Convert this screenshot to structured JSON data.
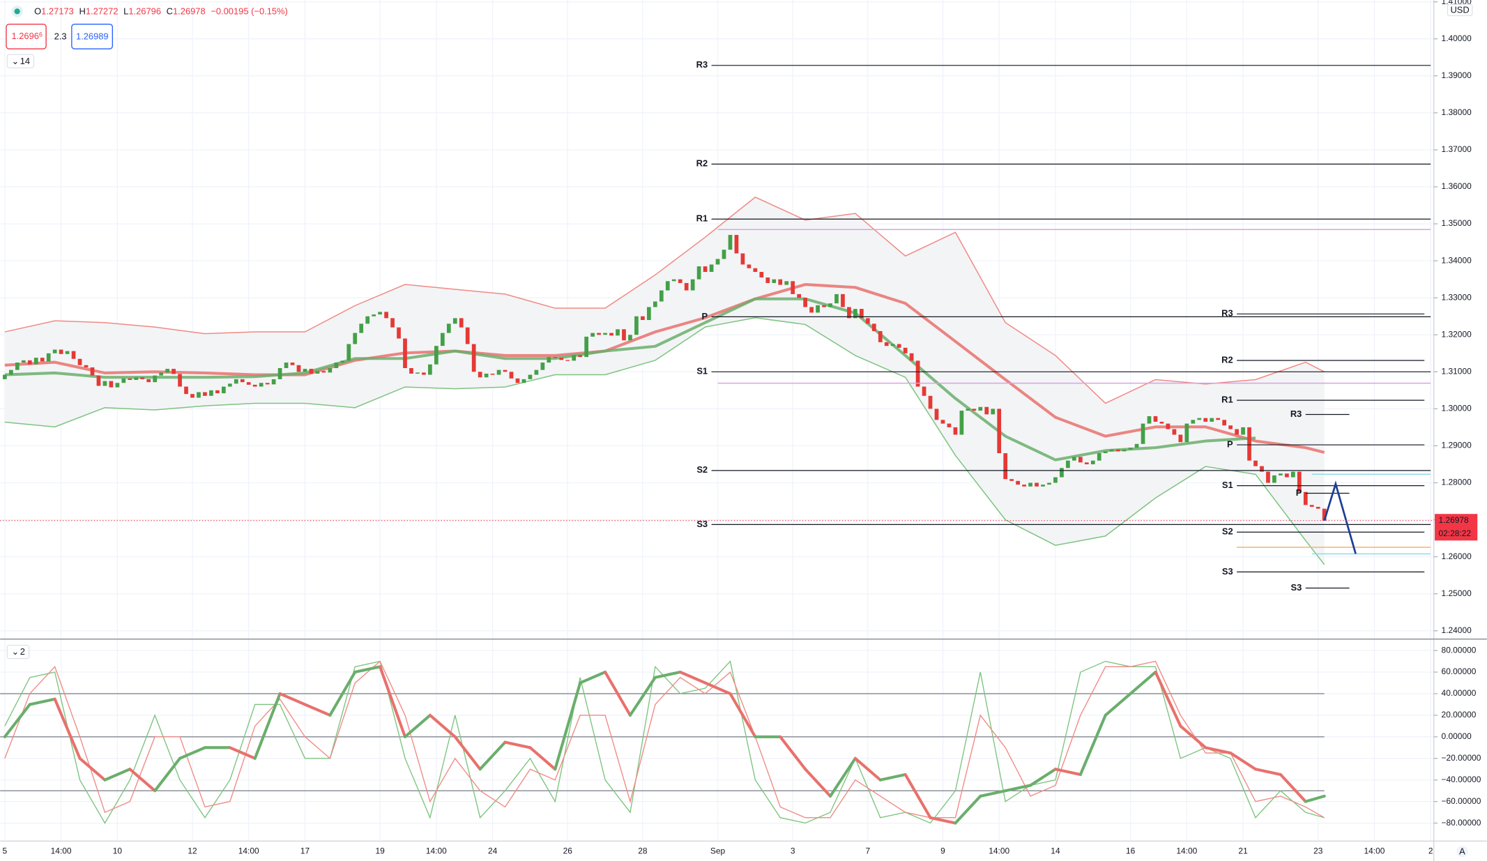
{
  "header": {
    "ohlc": [
      {
        "key": "O",
        "value": "1.27173"
      },
      {
        "key": "H",
        "value": "1.27272"
      },
      {
        "key": "L",
        "value": "1.26796"
      },
      {
        "key": "C",
        "value": "1.26978"
      }
    ],
    "change": "−0.00195 (−0.15%)",
    "bid": {
      "main": "1.2696",
      "pip": "6"
    },
    "spread": "2.3",
    "ask": "1.26989",
    "price_pane_toggle": "14",
    "osc_pane_toggle": "2",
    "currency": "USD",
    "countdown": "02:28:22",
    "auto_button": "A"
  },
  "chart_data": [
    {
      "type": "candlestick",
      "up_color": "#43a047",
      "down_color": "#e53935",
      "xlim": [
        -0.75,
        228.5
      ],
      "ylim": [
        1.238,
        1.4105
      ],
      "grid": true,
      "yticks": [
        {
          "value": 1.41,
          "label": "1.41000"
        },
        {
          "value": 1.4,
          "label": "1.40000"
        },
        {
          "value": 1.39,
          "label": "1.39000"
        },
        {
          "value": 1.38,
          "label": "1.38000"
        },
        {
          "value": 1.37,
          "label": "1.37000"
        },
        {
          "value": 1.36,
          "label": "1.36000"
        },
        {
          "value": 1.35,
          "label": "1.35000"
        },
        {
          "value": 1.34,
          "label": "1.34000"
        },
        {
          "value": 1.33,
          "label": "1.33000"
        },
        {
          "value": 1.32,
          "label": "1.32000"
        },
        {
          "value": 1.31,
          "label": "1.31000"
        },
        {
          "value": 1.3,
          "label": "1.30000"
        },
        {
          "value": 1.29,
          "label": "1.29000"
        },
        {
          "value": 1.28,
          "label": "1.28000"
        },
        {
          "value": 1.27,
          "label": "1.27000"
        },
        {
          "value": 1.26,
          "label": "1.26000"
        },
        {
          "value": 1.25,
          "label": "1.25000"
        },
        {
          "value": 1.24,
          "label": "1.24000"
        }
      ],
      "first_open": 1.308,
      "close": [
        1.3092,
        1.3105,
        1.3125,
        1.3131,
        1.312,
        1.3138,
        1.3128,
        1.315,
        1.316,
        1.3148,
        1.3156,
        1.3135,
        1.3118,
        1.3112,
        1.309,
        1.3062,
        1.3075,
        1.3058,
        1.307,
        1.3082,
        1.3078,
        1.3085,
        1.308,
        1.3072,
        1.309,
        1.3098,
        1.3108,
        1.3094,
        1.306,
        1.304,
        1.303,
        1.3045,
        1.3035,
        1.305,
        1.3042,
        1.306,
        1.3068,
        1.308,
        1.3072,
        1.3065,
        1.306,
        1.307,
        1.3066,
        1.308,
        1.311,
        1.3125,
        1.3118,
        1.31,
        1.3108,
        1.3095,
        1.3102,
        1.3098,
        1.311,
        1.3125,
        1.313,
        1.3175,
        1.3205,
        1.323,
        1.325,
        1.3255,
        1.3262,
        1.3245,
        1.322,
        1.319,
        1.311,
        1.3095,
        1.3098,
        1.3092,
        1.312,
        1.317,
        1.3205,
        1.323,
        1.3245,
        1.322,
        1.3175,
        1.31,
        1.3085,
        1.3095,
        1.3092,
        1.3105,
        1.31,
        1.3082,
        1.307,
        1.308,
        1.3092,
        1.3105,
        1.3125,
        1.314,
        1.3138,
        1.3132,
        1.313,
        1.3145,
        1.314,
        1.3195,
        1.3205,
        1.32,
        1.3205,
        1.3198,
        1.3215,
        1.3185,
        1.32,
        1.325,
        1.324,
        1.3275,
        1.329,
        1.332,
        1.3345,
        1.335,
        1.334,
        1.332,
        1.335,
        1.3385,
        1.337,
        1.339,
        1.3405,
        1.343,
        1.347,
        1.342,
        1.339,
        1.338,
        1.337,
        1.3355,
        1.334,
        1.335,
        1.3335,
        1.3345,
        1.331,
        1.33,
        1.3275,
        1.326,
        1.328,
        1.3275,
        1.3285,
        1.331,
        1.3275,
        1.3245,
        1.327,
        1.3245,
        1.323,
        1.321,
        1.318,
        1.317,
        1.3175,
        1.3165,
        1.315,
        1.313,
        1.306,
        1.3035,
        1.3,
        1.297,
        1.296,
        1.295,
        1.293,
        1.2995,
        1.3,
        1.2995,
        1.3005,
        1.2985,
        1.3,
        1.288,
        1.281,
        1.2805,
        1.2795,
        1.279,
        1.28,
        1.279,
        1.2795,
        1.28,
        1.2815,
        1.284,
        1.286,
        1.287,
        1.2855,
        1.285,
        1.286,
        1.288,
        1.2885,
        1.289,
        1.2885,
        1.289,
        1.2895,
        1.2905,
        1.296,
        1.298,
        1.2965,
        1.296,
        1.2945,
        1.293,
        1.291,
        1.296,
        1.297,
        1.2975,
        1.2965,
        1.2975,
        1.297,
        1.2955,
        1.2945,
        1.293,
        1.295,
        1.286,
        1.2845,
        1.283,
        1.28,
        1.282,
        1.2825,
        1.2815,
        1.283,
        1.2775,
        1.274,
        1.2735,
        1.273,
        1.26978
      ],
      "bands": {
        "x": [
          0,
          8,
          16,
          24,
          32,
          40,
          48,
          56,
          64,
          72,
          80,
          88,
          96,
          104,
          112,
          120,
          128,
          136,
          144,
          152,
          160,
          168,
          176,
          184,
          192,
          200,
          208,
          211
        ],
        "fill": "#f3f4f6",
        "upper_color": "#ef8a84",
        "lower_color": "#7cc47f",
        "upper": [
          1.3208,
          1.3238,
          1.3233,
          1.3221,
          1.3203,
          1.3208,
          1.3208,
          1.3279,
          1.3336,
          1.3323,
          1.331,
          1.3272,
          1.3272,
          1.3362,
          1.3464,
          1.3572,
          1.351,
          1.3528,
          1.3413,
          1.3477,
          1.3233,
          1.3144,
          1.3015,
          1.3079,
          1.3067,
          1.3079,
          1.3126,
          1.31
        ],
        "lower": [
          1.2964,
          1.2951,
          1.3003,
          1.2997,
          1.3008,
          1.3015,
          1.3015,
          1.3003,
          1.3059,
          1.3054,
          1.3059,
          1.3092,
          1.3092,
          1.3131,
          1.3221,
          1.3246,
          1.3228,
          1.3144,
          1.3085,
          1.2874,
          1.27,
          1.2631,
          1.2656,
          1.2759,
          1.2844,
          1.2823,
          1.2644,
          1.2579
        ]
      },
      "averages": [
        {
          "color": "#e8716c",
          "values": [
            1.3118,
            1.3126,
            1.3097,
            1.31,
            1.3097,
            1.3092,
            1.3092,
            1.3131,
            1.3151,
            1.3156,
            1.3144,
            1.3144,
            1.3156,
            1.3208,
            1.3246,
            1.3297,
            1.3336,
            1.3328,
            1.3285,
            1.3182,
            1.3079,
            1.2977,
            1.2926,
            1.2951,
            1.2951,
            1.2913,
            1.2895,
            1.2882
          ]
        },
        {
          "color": "#6aae6c",
          "values": [
            1.3092,
            1.3097,
            1.3085,
            1.3085,
            1.3085,
            1.3087,
            1.3097,
            1.3136,
            1.3136,
            1.3156,
            1.3136,
            1.3136,
            1.3156,
            1.3169,
            1.3233,
            1.3297,
            1.3297,
            1.3259,
            1.3144,
            1.3028,
            1.2926,
            1.2862,
            1.2887,
            1.2895,
            1.2913,
            1.2921,
            null,
            null
          ]
        }
      ],
      "pivot_sets": [
        {
          "start": 113,
          "end": 228,
          "levels": [
            {
              "label": "R3",
              "value": 1.39282
            },
            {
              "label": "R2",
              "value": 1.36615
            },
            {
              "label": "R1",
              "value": 1.35128
            },
            {
              "label": "P",
              "value": 1.32487
            },
            {
              "label": "S1",
              "value": 1.31
            },
            {
              "label": "S2",
              "value": 1.28333
            },
            {
              "label": "S3",
              "value": 1.26872
            }
          ]
        },
        {
          "start": 197,
          "end": 227,
          "levels": [
            {
              "label": "R3",
              "value": 1.32564
            },
            {
              "label": "R2",
              "value": 1.31308
            },
            {
              "label": "R1",
              "value": 1.30231
            },
            {
              "label": "P",
              "value": 1.29026
            },
            {
              "label": "S1",
              "value": 1.27923
            },
            {
              "label": "S2",
              "value": 1.26667
            },
            {
              "label": "S3",
              "value": 1.2559
            }
          ]
        },
        {
          "start": 208,
          "end": 215,
          "levels": [
            {
              "label": "R3",
              "value": 1.29846
            },
            {
              "label": "P",
              "value": 1.27718
            },
            {
              "label": "S3",
              "value": 1.25154
            }
          ]
        }
      ],
      "lines": [
        {
          "value": 1.34846,
          "start": 114,
          "end": 228,
          "color": "#d8a3e3"
        },
        {
          "value": 1.30692,
          "start": 114,
          "end": 228,
          "color": "#d8a3e3"
        },
        {
          "value": 1.26256,
          "start": 197,
          "end": 228,
          "color": "#f3b66b"
        },
        {
          "value": 1.28231,
          "start": 209,
          "end": 228,
          "color": "#8fdbe6"
        },
        {
          "value": 1.26077,
          "start": 209,
          "end": 228,
          "color": "#8fdbe6"
        }
      ],
      "projection": {
        "x": [
          211,
          212.8,
          216
        ],
        "values": [
          1.26978,
          1.2797,
          1.2608
        ],
        "color": "#1c3f94"
      },
      "last_price": {
        "value": 1.26978,
        "label": "1.26978",
        "color": "#f23645"
      }
    },
    {
      "type": "line",
      "xlim": [
        -0.75,
        228.5
      ],
      "ylim": [
        -95.8,
        89.7
      ],
      "levels": [
        40,
        0,
        -50
      ],
      "yticks": [
        {
          "value": 80,
          "label": "80.00000"
        },
        {
          "value": 60,
          "label": "60.00000"
        },
        {
          "value": 40,
          "label": "40.00000"
        },
        {
          "value": 20,
          "label": "20.00000"
        },
        {
          "value": 0,
          "label": "0.00000"
        },
        {
          "value": -20,
          "label": "−20.00000"
        },
        {
          "value": -40,
          "label": "−40.00000"
        },
        {
          "value": -60,
          "label": "−60.00000"
        },
        {
          "value": -80,
          "label": "−80.00000"
        }
      ],
      "xticks": [
        {
          "value": 0,
          "label": "5"
        },
        {
          "value": 9,
          "label": "14:00"
        },
        {
          "value": 18,
          "label": "10"
        },
        {
          "value": 30,
          "label": "12"
        },
        {
          "value": 39,
          "label": "14:00"
        },
        {
          "value": 48,
          "label": "17"
        },
        {
          "value": 60,
          "label": "19"
        },
        {
          "value": 69,
          "label": "14:00"
        },
        {
          "value": 78,
          "label": "24"
        },
        {
          "value": 90,
          "label": "26"
        },
        {
          "value": 102,
          "label": "28"
        },
        {
          "value": 114,
          "label": "Sep"
        },
        {
          "value": 126,
          "label": "3"
        },
        {
          "value": 138,
          "label": "7"
        },
        {
          "value": 150,
          "label": "9"
        },
        {
          "value": 159,
          "label": "14:00"
        },
        {
          "value": 168,
          "label": "14"
        },
        {
          "value": 180,
          "label": "16"
        },
        {
          "value": 189,
          "label": "14:00"
        },
        {
          "value": 198,
          "label": "21"
        },
        {
          "value": 210,
          "label": "23"
        },
        {
          "value": 219,
          "label": "14:00"
        },
        {
          "value": 228,
          "label": "2"
        }
      ],
      "x": [
        0,
        4,
        8,
        12,
        16,
        20,
        24,
        28,
        32,
        36,
        40,
        44,
        48,
        52,
        56,
        60,
        64,
        68,
        72,
        76,
        80,
        84,
        88,
        92,
        96,
        100,
        104,
        108,
        112,
        116,
        120,
        124,
        128,
        132,
        136,
        140,
        144,
        148,
        152,
        156,
        160,
        164,
        168,
        172,
        176,
        180,
        184,
        188,
        192,
        196,
        200,
        204,
        208,
        211
      ],
      "series": [
        {
          "color": "#7cc47f",
          "width": 1,
          "values": [
            10,
            55,
            60,
            -40,
            -80,
            -40,
            20,
            -40,
            -75,
            -40,
            30,
            30,
            -20,
            -20,
            65,
            70,
            -20,
            -75,
            20,
            -75,
            -50,
            -20,
            -60,
            55,
            -40,
            -70,
            65,
            40,
            45,
            70,
            -40,
            -75,
            -80,
            -70,
            -20,
            -75,
            -70,
            -80,
            -50,
            60,
            -60,
            -45,
            -40,
            60,
            70,
            65,
            65,
            -20,
            -10,
            -20,
            -75,
            -50,
            -70,
            -75
          ]
        },
        {
          "color": "#ef8a84",
          "width": 1,
          "values": [
            -20,
            40,
            65,
            0,
            -70,
            -60,
            0,
            0,
            -65,
            -60,
            10,
            35,
            0,
            -20,
            50,
            70,
            20,
            -60,
            -20,
            -50,
            -65,
            -30,
            -40,
            20,
            20,
            -60,
            30,
            55,
            40,
            60,
            0,
            -65,
            -75,
            -75,
            -40,
            -55,
            -70,
            -75,
            -75,
            20,
            -10,
            -55,
            -45,
            20,
            65,
            65,
            70,
            20,
            -15,
            -15,
            -60,
            -55,
            -65,
            -75
          ]
        },
        {
          "color": "#6aae6c",
          "fall_color": "#e8716c",
          "width": 3,
          "values": [
            0,
            30,
            35,
            -20,
            -40,
            -30,
            -50,
            -20,
            -10,
            -10,
            -20,
            40,
            30,
            20,
            60,
            65,
            0,
            20,
            0,
            -30,
            -5,
            -10,
            -30,
            50,
            60,
            20,
            55,
            60,
            50,
            40,
            0,
            0,
            -30,
            -55,
            -20,
            -40,
            -35,
            -75,
            -80,
            -55,
            -50,
            -45,
            -30,
            -35,
            20,
            40,
            60,
            10,
            -10,
            -15,
            -30,
            -35,
            -60,
            -55
          ]
        }
      ]
    }
  ]
}
